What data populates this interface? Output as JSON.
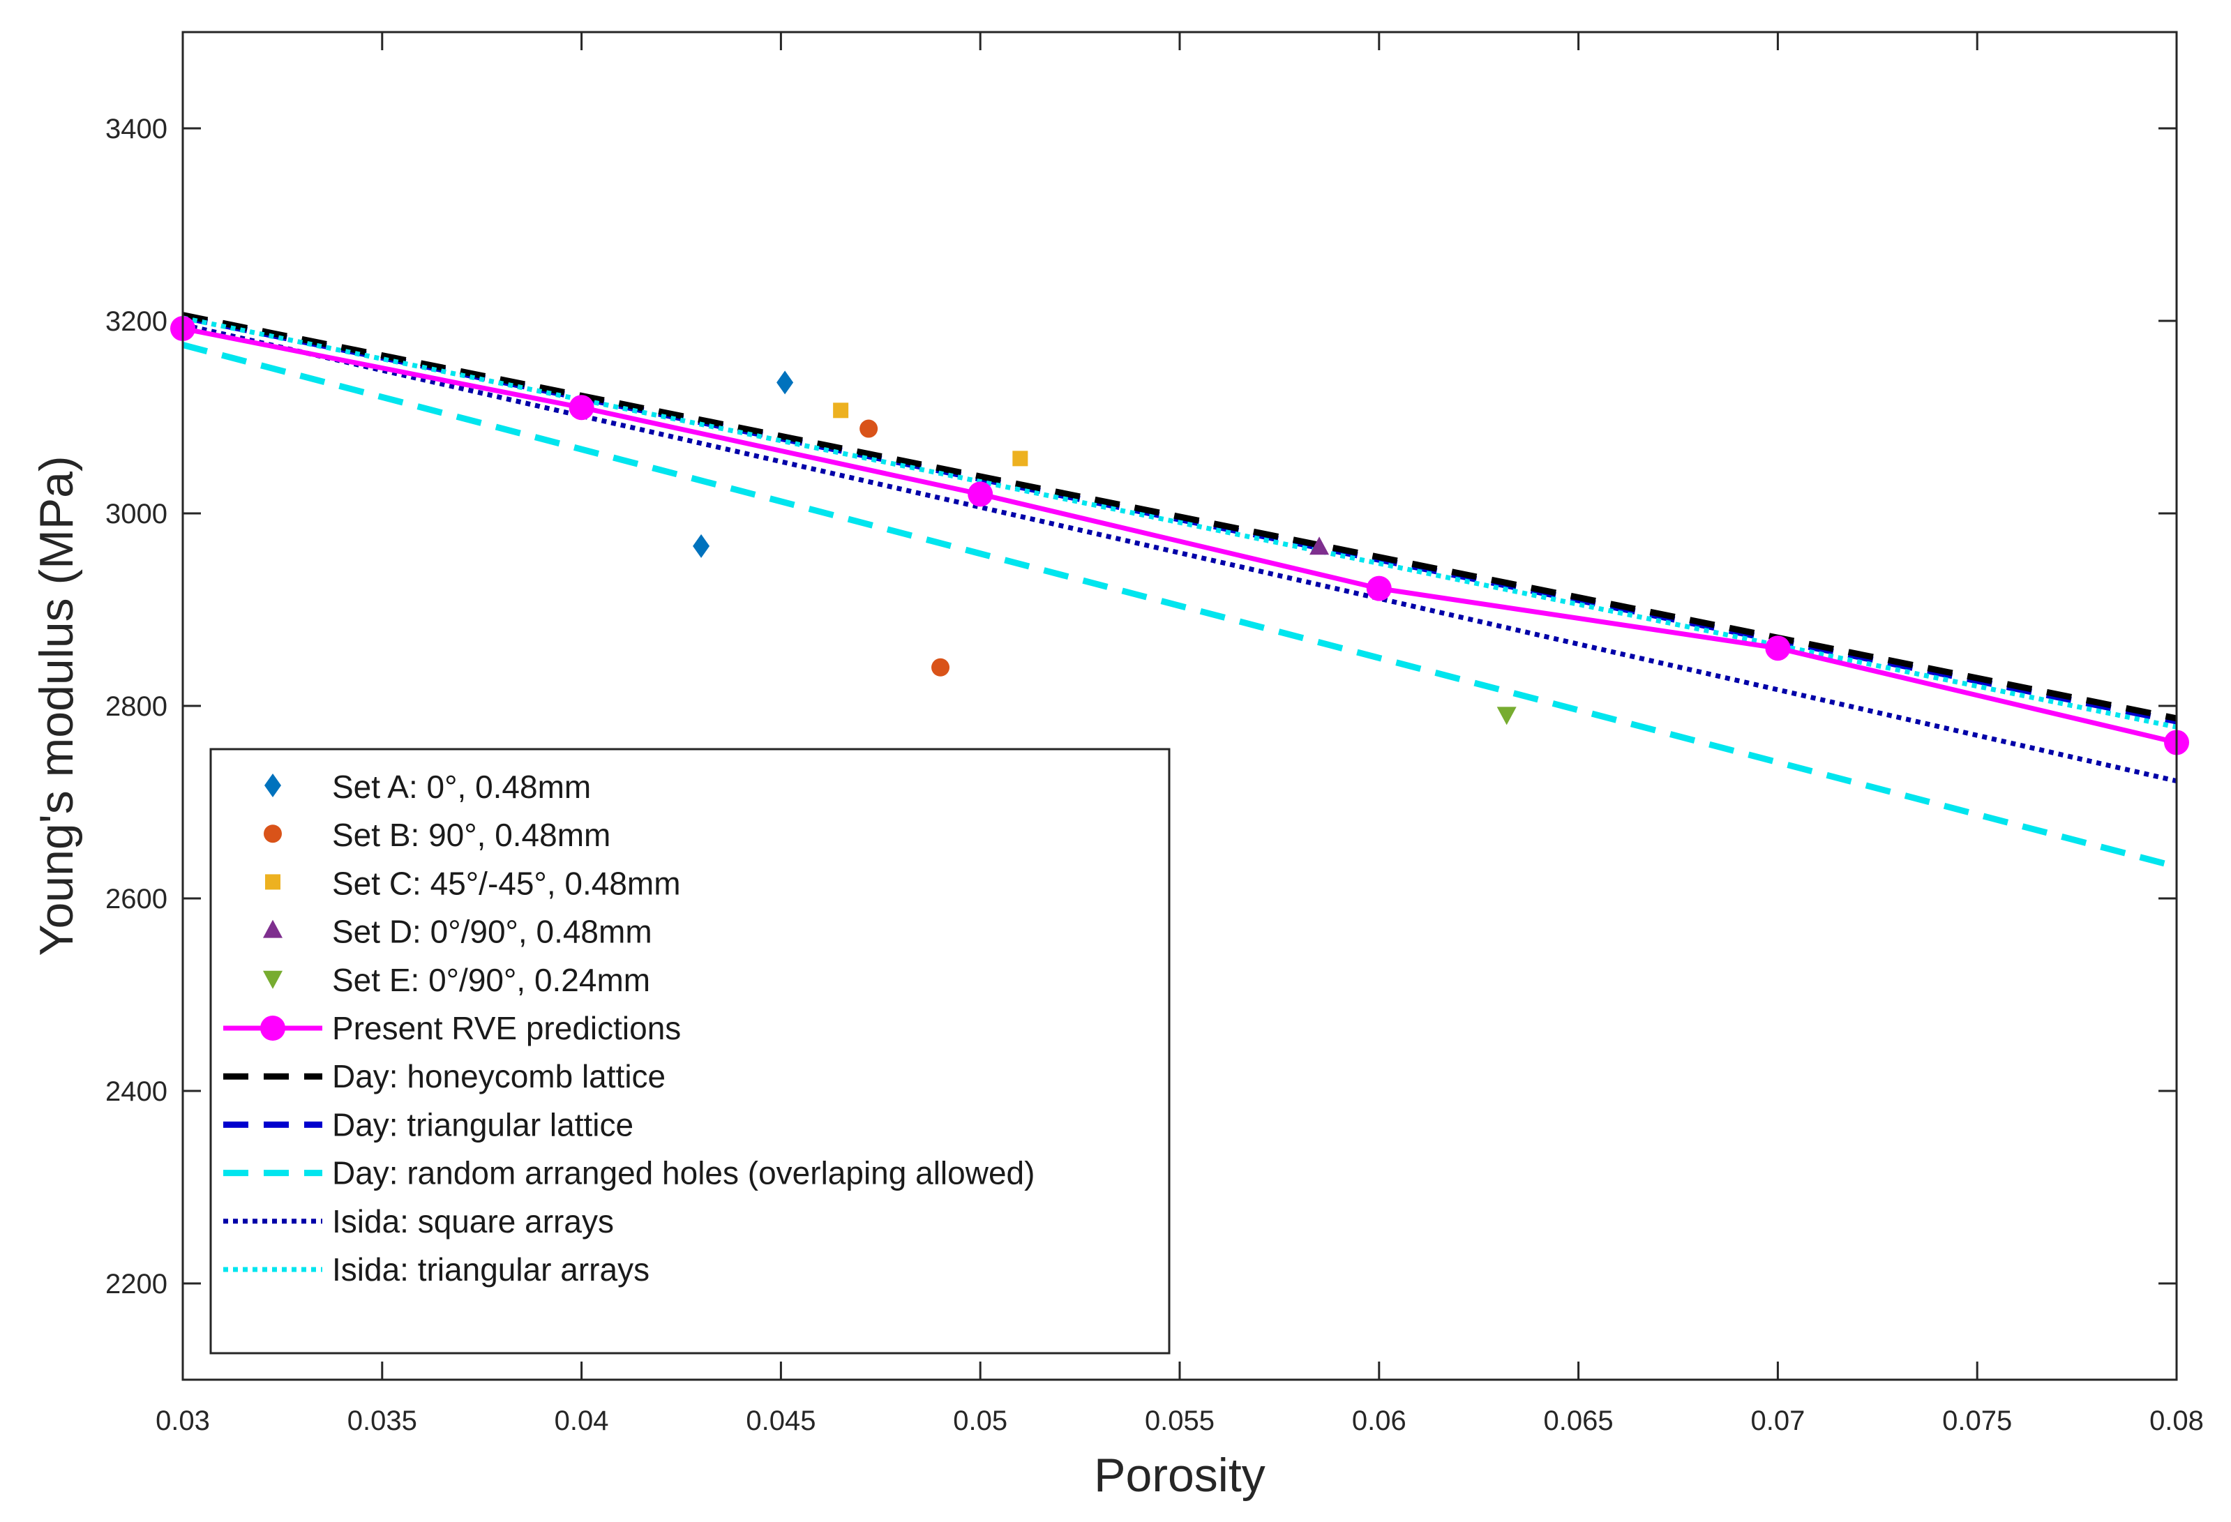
{
  "chart_data": {
    "type": "line",
    "title": "",
    "xlabel": "Porosity",
    "ylabel": "Young's modulus (MPa)",
    "xlim": [
      0.03,
      0.08
    ],
    "ylim": [
      2100,
      3500
    ],
    "xticks": [
      0.03,
      0.035,
      0.04,
      0.045,
      0.05,
      0.055,
      0.06,
      0.065,
      0.07,
      0.075,
      0.08
    ],
    "xtick_labels": [
      "0.03",
      "0.035",
      "0.04",
      "0.045",
      "0.05",
      "0.055",
      "0.06",
      "0.065",
      "0.07",
      "0.075",
      "0.08"
    ],
    "yticks": [
      2200,
      2400,
      2600,
      2800,
      3000,
      3200,
      3400
    ],
    "ytick_labels": [
      "2200",
      "2400",
      "2600",
      "2800",
      "3000",
      "3200",
      "3400"
    ],
    "legend_position": "bottom-left",
    "series": [
      {
        "name": "Set A: 0°, 0.48mm",
        "kind": "scatter",
        "marker": "diamond",
        "color": "#0072BD",
        "points": [
          {
            "x": 0.043,
            "y": 2966
          },
          {
            "x": 0.0451,
            "y": 3136
          }
        ]
      },
      {
        "name": "Set B: 90°, 0.48mm",
        "kind": "scatter",
        "marker": "circle",
        "color": "#D95319",
        "points": [
          {
            "x": 0.0472,
            "y": 3088
          },
          {
            "x": 0.049,
            "y": 2840
          }
        ]
      },
      {
        "name": "Set C: 45°/-45°, 0.48mm",
        "kind": "scatter",
        "marker": "square",
        "color": "#EDB120",
        "points": [
          {
            "x": 0.0465,
            "y": 3107
          },
          {
            "x": 0.051,
            "y": 3057
          }
        ]
      },
      {
        "name": "Set D: 0°/90°, 0.48mm",
        "kind": "scatter",
        "marker": "triangle-up",
        "color": "#7E2F8E",
        "points": [
          {
            "x": 0.0585,
            "y": 2965
          }
        ]
      },
      {
        "name": "Set E: 0°/90°, 0.24mm",
        "kind": "scatter",
        "marker": "triangle-down",
        "color": "#77AC30",
        "points": [
          {
            "x": 0.0632,
            "y": 2791
          }
        ]
      },
      {
        "name": "Present RVE predictions",
        "kind": "line",
        "style": "solid-marker",
        "color": "#FF00FF",
        "points": [
          {
            "x": 0.03,
            "y": 3192
          },
          {
            "x": 0.04,
            "y": 3110
          },
          {
            "x": 0.05,
            "y": 3020
          },
          {
            "x": 0.06,
            "y": 2922
          },
          {
            "x": 0.07,
            "y": 2860
          },
          {
            "x": 0.08,
            "y": 2762
          }
        ]
      },
      {
        "name": "Day: honeycomb lattice",
        "kind": "line",
        "style": "dashed",
        "color": "#000000",
        "points": [
          {
            "x": 0.03,
            "y": 3206
          },
          {
            "x": 0.08,
            "y": 2787
          }
        ]
      },
      {
        "name": "Day: triangular lattice",
        "kind": "line",
        "style": "dashed",
        "color": "#0000CD",
        "points": [
          {
            "x": 0.03,
            "y": 3204
          },
          {
            "x": 0.08,
            "y": 2784
          }
        ]
      },
      {
        "name": "Day: random arranged holes (overlaping allowed)",
        "kind": "line",
        "style": "dashed",
        "color": "#00E5EE",
        "points": [
          {
            "x": 0.03,
            "y": 3175
          },
          {
            "x": 0.08,
            "y": 2633
          }
        ]
      },
      {
        "name": "Isida: square arrays",
        "kind": "line",
        "style": "dotted",
        "color": "#0000A8",
        "points": [
          {
            "x": 0.03,
            "y": 3196
          },
          {
            "x": 0.08,
            "y": 2722
          }
        ]
      },
      {
        "name": "Isida: triangular arrays",
        "kind": "line",
        "style": "dotted",
        "color": "#00E5EE",
        "points": [
          {
            "x": 0.03,
            "y": 3203
          },
          {
            "x": 0.08,
            "y": 2778
          }
        ]
      }
    ]
  }
}
